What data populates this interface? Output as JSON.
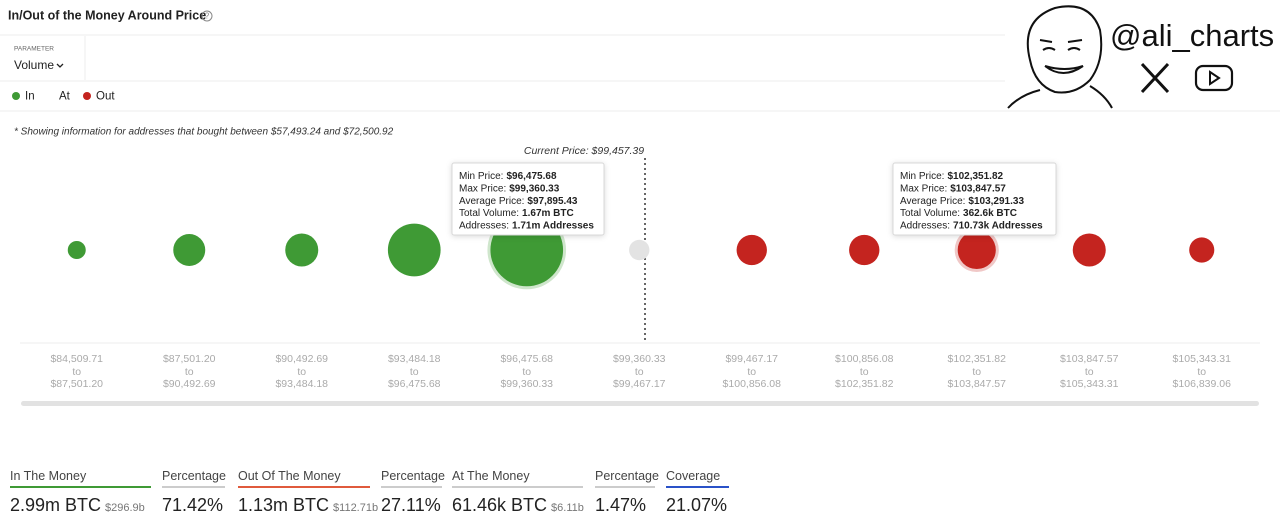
{
  "header": {
    "title": "In/Out of the Money Around Price",
    "parameter_label": "PARAMETER",
    "parameter_value": "Volume",
    "watermark": "@ali_charts"
  },
  "chart_data": {
    "type": "bubble",
    "note": "* Showing information for addresses that bought between $57,493.24 and $72,500.92",
    "annotation": "Current Price: $99,457.39",
    "range_separator": "to",
    "categories": [
      [
        "$84,509.71",
        "$87,501.20"
      ],
      [
        "$87,501.20",
        "$90,492.69"
      ],
      [
        "$90,492.69",
        "$93,484.18"
      ],
      [
        "$93,484.18",
        "$96,475.68"
      ],
      [
        "$96,475.68",
        "$99,360.33"
      ],
      [
        "$99,360.33",
        "$99,467.17"
      ],
      [
        "$99,467.17",
        "$100,856.08"
      ],
      [
        "$100,856.08",
        "$102,351.82"
      ],
      [
        "$102,351.82",
        "$103,847.57"
      ],
      [
        "$103,847.57",
        "$105,343.31"
      ],
      [
        "$105,343.31",
        "$106,839.06"
      ]
    ],
    "series": [
      {
        "name": "In",
        "color": "#3f9a35",
        "values": [
          40000,
          230000,
          250000,
          800000,
          1670000,
          null,
          null,
          null,
          null,
          null,
          null
        ]
      },
      {
        "name": "At",
        "color": "#e3e3e3",
        "values": [
          null,
          null,
          null,
          null,
          null,
          61460,
          null,
          null,
          null,
          null,
          null
        ]
      },
      {
        "name": "Out",
        "color": "#c4241f",
        "values": [
          null,
          null,
          null,
          null,
          null,
          null,
          200000,
          200000,
          362600,
          250000,
          117400
        ]
      }
    ],
    "tooltips": [
      [
        [
          "Min Price:",
          "$96,475.68"
        ],
        [
          "Max Price:",
          "$99,360.33"
        ],
        [
          "Average Price:",
          "$97,895.43"
        ],
        [
          "Total Volume:",
          "1.67m BTC"
        ],
        [
          "Addresses:",
          "1.71m Addresses"
        ]
      ],
      [
        [
          "Min Price:",
          "$102,351.82"
        ],
        [
          "Max Price:",
          "$103,847.57"
        ],
        [
          "Average Price:",
          "$103,291.33"
        ],
        [
          "Total Volume:",
          "362.6k BTC"
        ],
        [
          "Addresses:",
          "710.73k Addresses"
        ]
      ]
    ]
  },
  "summary": [
    {
      "label": "In The Money",
      "value": "2.99m BTC",
      "sub": "$296.9b"
    },
    {
      "label": "Percentage",
      "value": "71.42%"
    },
    {
      "label": "Out Of The Money",
      "value": "1.13m BTC",
      "sub": "$112.71b"
    },
    {
      "label": "Percentage",
      "value": "27.11%"
    },
    {
      "label": "At The Money",
      "value": "61.46k BTC",
      "sub": "$6.11b"
    },
    {
      "label": "Percentage",
      "value": "1.47%"
    },
    {
      "label": "Coverage",
      "value": "21.07%"
    }
  ]
}
